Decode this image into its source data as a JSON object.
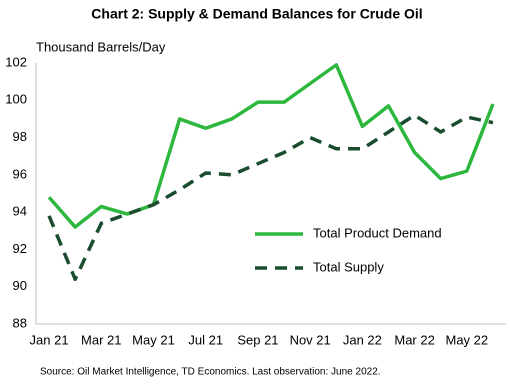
{
  "chart_data": {
    "type": "line",
    "title": "Chart 2: Supply & Demand Balances for Crude Oil",
    "y_label": "Thousand Barrels/Day",
    "source": "Source: Oil Market Intelligence,  TD Economics.  Last observation:  June 2022.",
    "categories": [
      "Jan 21",
      null,
      "Mar 21",
      null,
      "May 21",
      null,
      "Jul 21",
      null,
      "Sep 21",
      null,
      "Nov 21",
      null,
      "Jan 22",
      null,
      "Mar 22",
      null,
      "May 22",
      null
    ],
    "series": [
      {
        "name": "Total Product Demand",
        "color": "#2db83d",
        "dash": false,
        "values": [
          94.8,
          93.2,
          94.3,
          93.9,
          94.4,
          99.0,
          98.5,
          99.0,
          99.9,
          99.9,
          100.9,
          101.9,
          98.6,
          99.7,
          97.2,
          95.8,
          96.2,
          99.8
        ]
      },
      {
        "name": "Total Supply",
        "color": "#1a4d2e",
        "dash": true,
        "values": [
          93.8,
          90.4,
          93.4,
          93.9,
          94.4,
          95.2,
          96.1,
          96.0,
          96.6,
          97.2,
          98.0,
          97.4,
          97.4,
          98.3,
          99.2,
          98.3,
          99.1,
          98.8
        ]
      }
    ],
    "ylim": [
      88,
      102
    ],
    "yticks": [
      88,
      90,
      92,
      94,
      96,
      98,
      100,
      102
    ],
    "grid": false
  }
}
